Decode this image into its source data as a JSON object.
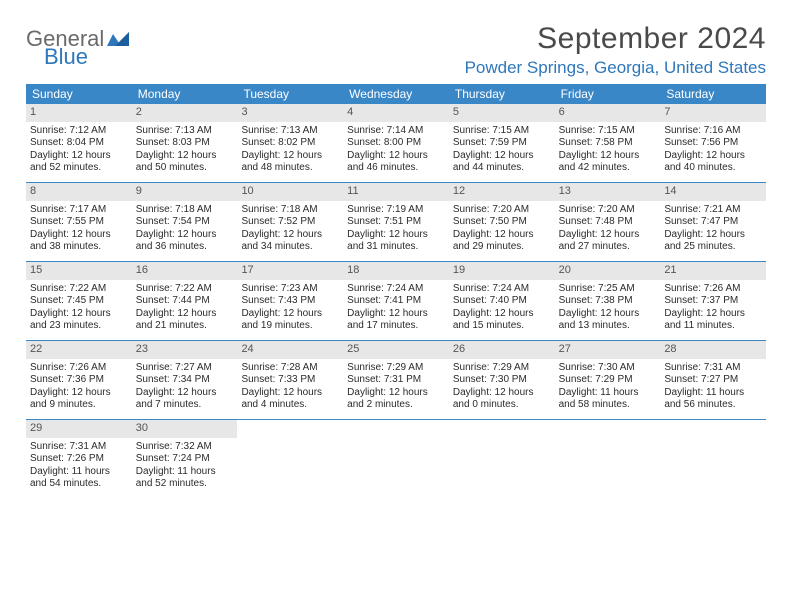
{
  "logo": {
    "general": "General",
    "blue": "Blue"
  },
  "header": {
    "month_title": "September 2024",
    "location": "Powder Springs, Georgia, United States"
  },
  "colors": {
    "header_bg": "#3a87c8",
    "accent": "#2e77bb",
    "daynum_bg": "#e7e7e7",
    "text": "#2b2b2b"
  },
  "day_labels": [
    "Sunday",
    "Monday",
    "Tuesday",
    "Wednesday",
    "Thursday",
    "Friday",
    "Saturday"
  ],
  "weeks": [
    [
      {
        "n": "1",
        "sr": "Sunrise: 7:12 AM",
        "ss": "Sunset: 8:04 PM",
        "dl": "Daylight: 12 hours and 52 minutes."
      },
      {
        "n": "2",
        "sr": "Sunrise: 7:13 AM",
        "ss": "Sunset: 8:03 PM",
        "dl": "Daylight: 12 hours and 50 minutes."
      },
      {
        "n": "3",
        "sr": "Sunrise: 7:13 AM",
        "ss": "Sunset: 8:02 PM",
        "dl": "Daylight: 12 hours and 48 minutes."
      },
      {
        "n": "4",
        "sr": "Sunrise: 7:14 AM",
        "ss": "Sunset: 8:00 PM",
        "dl": "Daylight: 12 hours and 46 minutes."
      },
      {
        "n": "5",
        "sr": "Sunrise: 7:15 AM",
        "ss": "Sunset: 7:59 PM",
        "dl": "Daylight: 12 hours and 44 minutes."
      },
      {
        "n": "6",
        "sr": "Sunrise: 7:15 AM",
        "ss": "Sunset: 7:58 PM",
        "dl": "Daylight: 12 hours and 42 minutes."
      },
      {
        "n": "7",
        "sr": "Sunrise: 7:16 AM",
        "ss": "Sunset: 7:56 PM",
        "dl": "Daylight: 12 hours and 40 minutes."
      }
    ],
    [
      {
        "n": "8",
        "sr": "Sunrise: 7:17 AM",
        "ss": "Sunset: 7:55 PM",
        "dl": "Daylight: 12 hours and 38 minutes."
      },
      {
        "n": "9",
        "sr": "Sunrise: 7:18 AM",
        "ss": "Sunset: 7:54 PM",
        "dl": "Daylight: 12 hours and 36 minutes."
      },
      {
        "n": "10",
        "sr": "Sunrise: 7:18 AM",
        "ss": "Sunset: 7:52 PM",
        "dl": "Daylight: 12 hours and 34 minutes."
      },
      {
        "n": "11",
        "sr": "Sunrise: 7:19 AM",
        "ss": "Sunset: 7:51 PM",
        "dl": "Daylight: 12 hours and 31 minutes."
      },
      {
        "n": "12",
        "sr": "Sunrise: 7:20 AM",
        "ss": "Sunset: 7:50 PM",
        "dl": "Daylight: 12 hours and 29 minutes."
      },
      {
        "n": "13",
        "sr": "Sunrise: 7:20 AM",
        "ss": "Sunset: 7:48 PM",
        "dl": "Daylight: 12 hours and 27 minutes."
      },
      {
        "n": "14",
        "sr": "Sunrise: 7:21 AM",
        "ss": "Sunset: 7:47 PM",
        "dl": "Daylight: 12 hours and 25 minutes."
      }
    ],
    [
      {
        "n": "15",
        "sr": "Sunrise: 7:22 AM",
        "ss": "Sunset: 7:45 PM",
        "dl": "Daylight: 12 hours and 23 minutes."
      },
      {
        "n": "16",
        "sr": "Sunrise: 7:22 AM",
        "ss": "Sunset: 7:44 PM",
        "dl": "Daylight: 12 hours and 21 minutes."
      },
      {
        "n": "17",
        "sr": "Sunrise: 7:23 AM",
        "ss": "Sunset: 7:43 PM",
        "dl": "Daylight: 12 hours and 19 minutes."
      },
      {
        "n": "18",
        "sr": "Sunrise: 7:24 AM",
        "ss": "Sunset: 7:41 PM",
        "dl": "Daylight: 12 hours and 17 minutes."
      },
      {
        "n": "19",
        "sr": "Sunrise: 7:24 AM",
        "ss": "Sunset: 7:40 PM",
        "dl": "Daylight: 12 hours and 15 minutes."
      },
      {
        "n": "20",
        "sr": "Sunrise: 7:25 AM",
        "ss": "Sunset: 7:38 PM",
        "dl": "Daylight: 12 hours and 13 minutes."
      },
      {
        "n": "21",
        "sr": "Sunrise: 7:26 AM",
        "ss": "Sunset: 7:37 PM",
        "dl": "Daylight: 12 hours and 11 minutes."
      }
    ],
    [
      {
        "n": "22",
        "sr": "Sunrise: 7:26 AM",
        "ss": "Sunset: 7:36 PM",
        "dl": "Daylight: 12 hours and 9 minutes."
      },
      {
        "n": "23",
        "sr": "Sunrise: 7:27 AM",
        "ss": "Sunset: 7:34 PM",
        "dl": "Daylight: 12 hours and 7 minutes."
      },
      {
        "n": "24",
        "sr": "Sunrise: 7:28 AM",
        "ss": "Sunset: 7:33 PM",
        "dl": "Daylight: 12 hours and 4 minutes."
      },
      {
        "n": "25",
        "sr": "Sunrise: 7:29 AM",
        "ss": "Sunset: 7:31 PM",
        "dl": "Daylight: 12 hours and 2 minutes."
      },
      {
        "n": "26",
        "sr": "Sunrise: 7:29 AM",
        "ss": "Sunset: 7:30 PM",
        "dl": "Daylight: 12 hours and 0 minutes."
      },
      {
        "n": "27",
        "sr": "Sunrise: 7:30 AM",
        "ss": "Sunset: 7:29 PM",
        "dl": "Daylight: 11 hours and 58 minutes."
      },
      {
        "n": "28",
        "sr": "Sunrise: 7:31 AM",
        "ss": "Sunset: 7:27 PM",
        "dl": "Daylight: 11 hours and 56 minutes."
      }
    ],
    [
      {
        "n": "29",
        "sr": "Sunrise: 7:31 AM",
        "ss": "Sunset: 7:26 PM",
        "dl": "Daylight: 11 hours and 54 minutes."
      },
      {
        "n": "30",
        "sr": "Sunrise: 7:32 AM",
        "ss": "Sunset: 7:24 PM",
        "dl": "Daylight: 11 hours and 52 minutes."
      },
      null,
      null,
      null,
      null,
      null
    ]
  ]
}
